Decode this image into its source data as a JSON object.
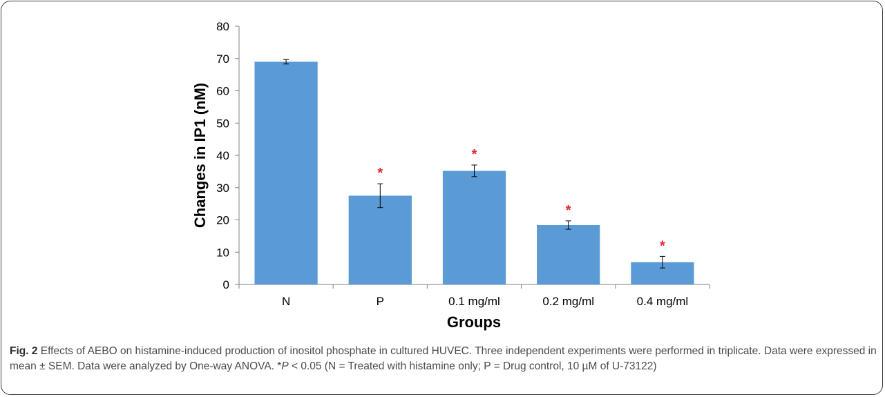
{
  "chart_data": {
    "type": "bar",
    "categories": [
      "N",
      "P",
      "0.1 mg/ml",
      "0.2 mg/ml",
      "0.4 mg/ml"
    ],
    "values": [
      69,
      27.5,
      35.2,
      18.4,
      6.9
    ],
    "errors": [
      0.7,
      3.7,
      1.8,
      1.3,
      1.8
    ],
    "significant": [
      false,
      true,
      true,
      true,
      true
    ],
    "significance_marker": "*",
    "xlabel": "Groups",
    "ylabel": "Changes in IP1 (nM)",
    "ylim": [
      0,
      80
    ],
    "yticks": [
      0,
      10,
      20,
      30,
      40,
      50,
      60,
      70,
      80
    ],
    "grid": false,
    "bar_color": "#5b9bd5",
    "marker_color": "#e3262d"
  },
  "caption": {
    "fig_label": "Fig. 2",
    "text_before_p": " Effects of AEBO on histamine-induced production of inositol phosphate in cultured HUVEC. Three independent experiments were performed in triplicate. Data were expressed in mean ± SEM. Data were analyzed by One-way ANOVA. *",
    "p_symbol": "P",
    "text_after_p": " < 0.05 (N = Treated with histamine only; P = Drug control, 10 µM of U-73122)"
  }
}
